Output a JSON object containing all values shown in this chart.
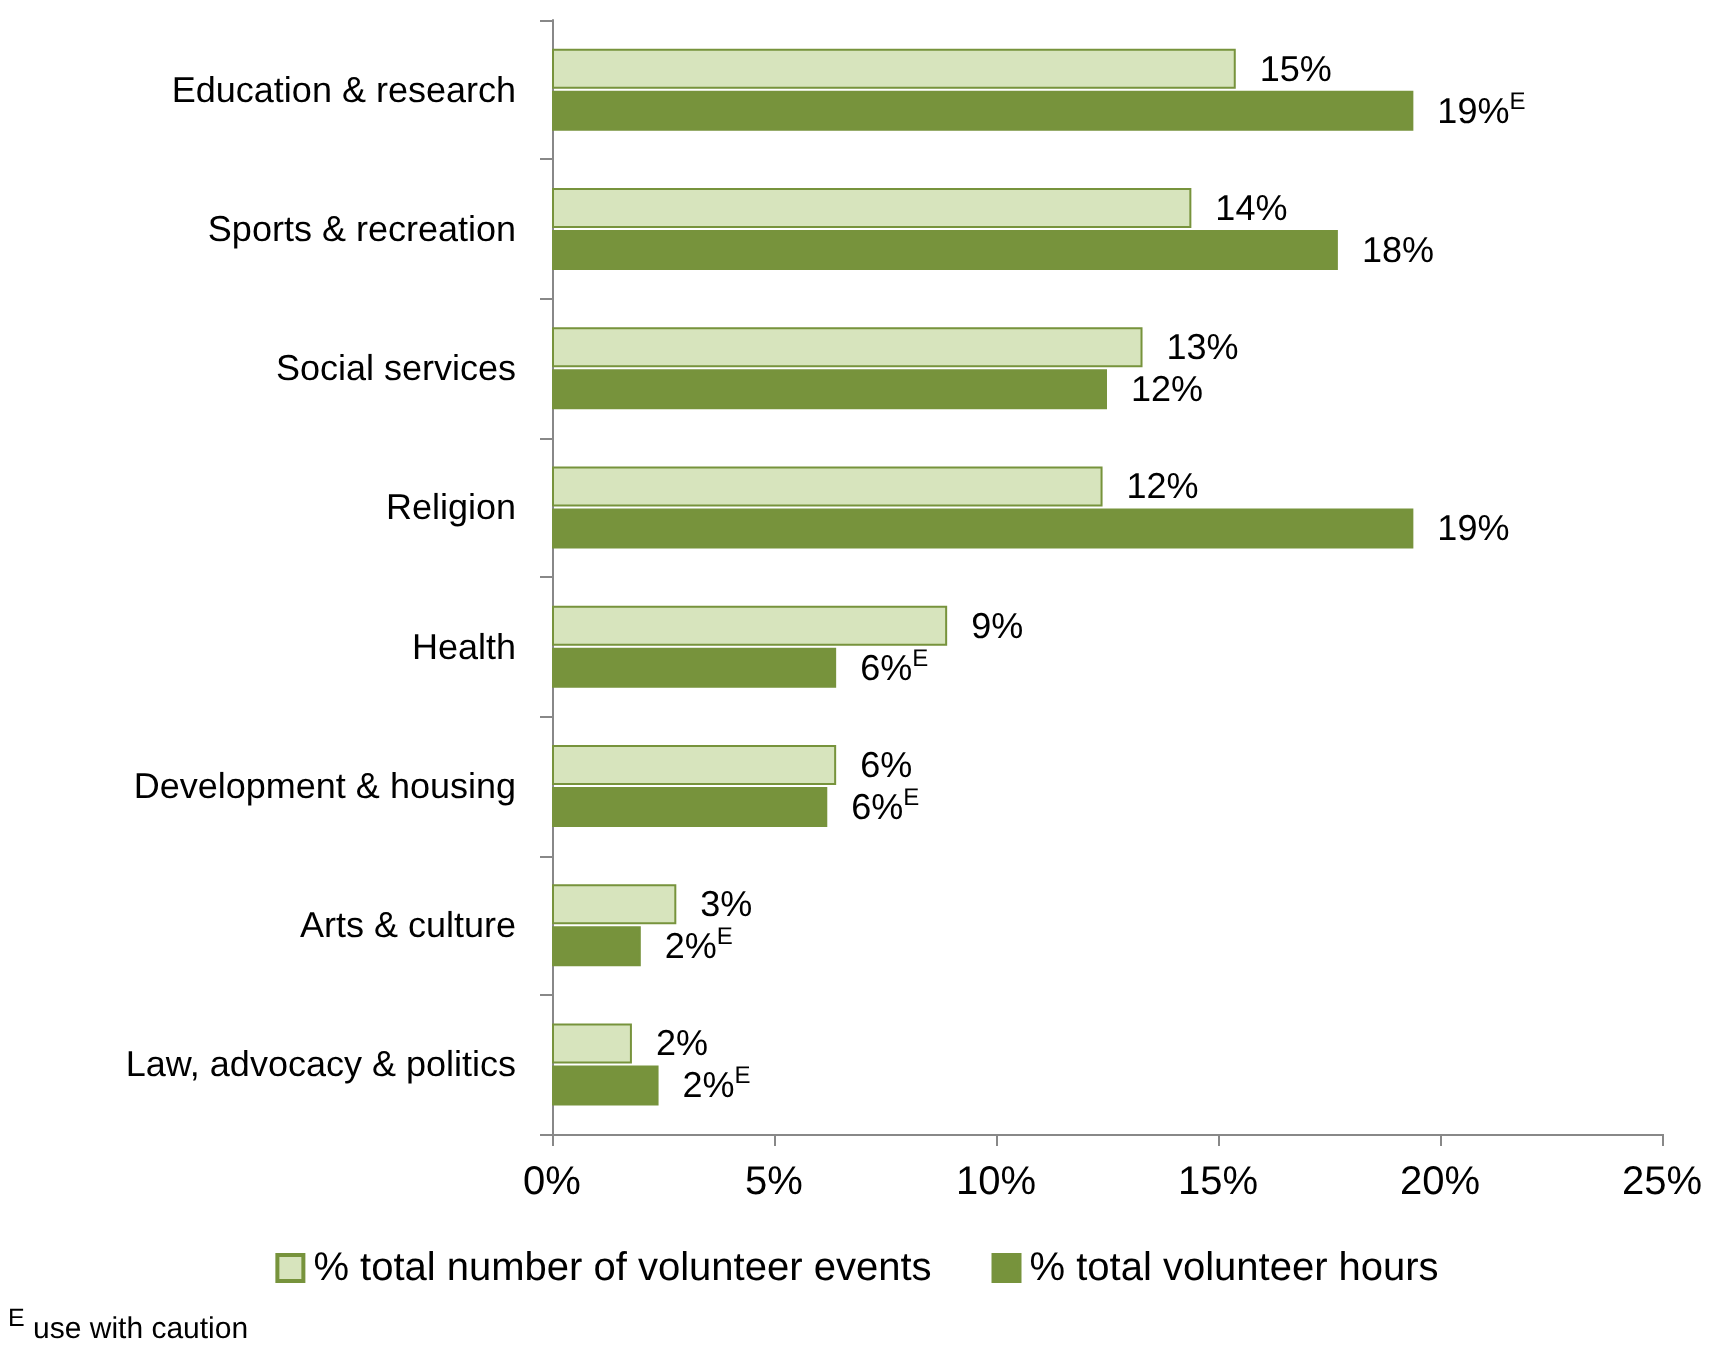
{
  "chart_data": {
    "type": "bar",
    "orientation": "horizontal",
    "categories": [
      "Education & research",
      "Sports & recreation",
      "Social services",
      "Religion",
      "Health",
      "Development & housing",
      "Arts & culture",
      "Law, advocacy & politics"
    ],
    "series": [
      {
        "name": "% total number of volunteer events",
        "color": "#d7e4bd",
        "values": [
          15.4,
          14.4,
          13.3,
          12.4,
          8.9,
          6.4,
          2.8,
          1.8
        ],
        "value_labels": [
          "15%",
          "14%",
          "13%",
          "12%",
          "9%",
          "6%",
          "3%",
          "2%"
        ]
      },
      {
        "name": "% total volunteer hours",
        "color": "#77933c",
        "values": [
          19.4,
          17.7,
          12.5,
          19.4,
          6.4,
          6.2,
          2.0,
          2.4
        ],
        "value_labels": [
          "19%$^{E}$",
          "18%",
          "12%",
          "19%",
          "6%$^{E}$",
          "6%$^{E}$",
          "2%$^{E}$",
          "2%$^{E}$"
        ]
      }
    ],
    "xlim": [
      0,
      25
    ],
    "xticks": [
      {
        "value": 0,
        "label": "0%"
      },
      {
        "value": 5,
        "label": "5%"
      },
      {
        "value": 10,
        "label": "10%"
      },
      {
        "value": 15,
        "label": "15%"
      },
      {
        "value": 20,
        "label": "20%"
      },
      {
        "value": 25,
        "label": "25%"
      }
    ],
    "grid": false,
    "legend": "bottom",
    "annotations": [
      "$^{E}$ use with caution"
    ]
  }
}
